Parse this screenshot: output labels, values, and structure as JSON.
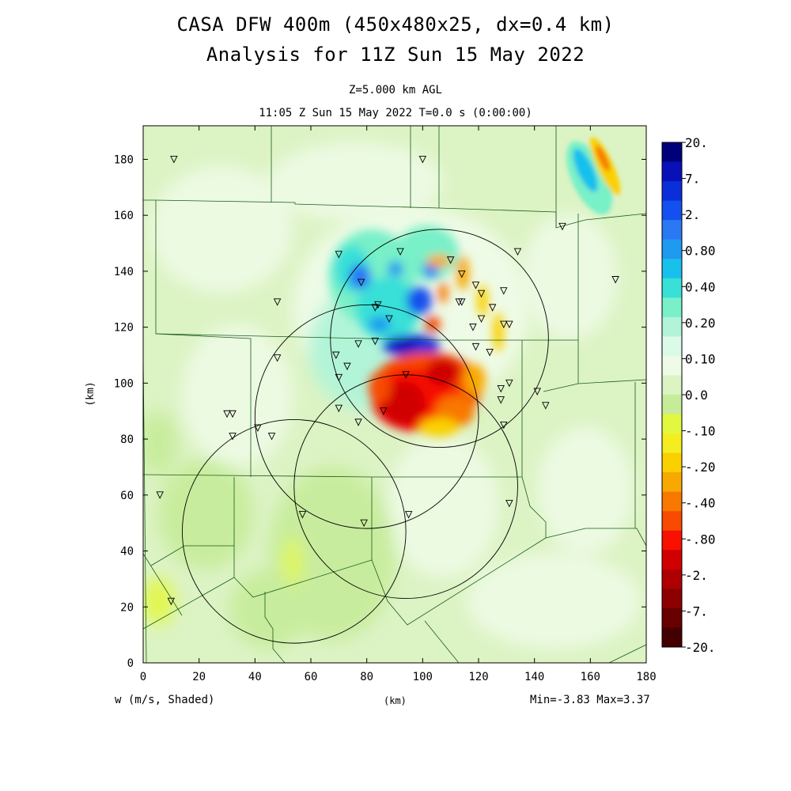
{
  "header": {
    "title_line1": "CASA DFW 400m (450x480x25, dx=0.4 km)",
    "title_line2": "Analysis for 11Z Sun 15 May 2022",
    "level": "Z=5.000 km AGL",
    "time_line": "11:05 Z Sun 15 May 2022    T=0.0 s (0:00:00)"
  },
  "footer": {
    "field_label": "w (m/s, Shaded)",
    "xunit": "(km)",
    "minmax": "Min=-3.83 Max=3.37"
  },
  "chart_data": {
    "type": "heatmap",
    "title": "CASA DFW 400m (450x480x25, dx=0.4 km)",
    "subtitle": "Analysis for 11Z Sun 15 May 2022",
    "xlabel": "(km)",
    "ylabel": "(km)",
    "xlim": [
      0,
      180
    ],
    "ylim": [
      0,
      192
    ],
    "xticks": [
      0,
      20,
      40,
      60,
      80,
      100,
      120,
      140,
      160,
      180
    ],
    "yticks": [
      0,
      20,
      40,
      60,
      80,
      100,
      120,
      140,
      160,
      180
    ],
    "field": "w (m/s, Shaded)",
    "min": -3.83,
    "max": 3.37,
    "colorbar": {
      "labels": [
        "20.",
        "7.",
        "2.",
        "0.80",
        "0.40",
        "0.20",
        "0.10",
        "0.0",
        "-.10",
        "-.20",
        "-.40",
        "-.80",
        "-2.",
        "-7.",
        "-20."
      ],
      "colors": [
        "#00007a",
        "#0a10b8",
        "#0a2ed8",
        "#1450ee",
        "#2a78f4",
        "#1e9af0",
        "#18c0ec",
        "#38e0d8",
        "#78f0c8",
        "#b2f4d8",
        "#dcfae8",
        "#eefbe6",
        "#dcf3c4",
        "#c6ec9a",
        "#e2f840",
        "#f4ee20",
        "#fad000",
        "#f8a800",
        "#f87800",
        "#f84a00",
        "#f81000",
        "#d00000",
        "#ae0000",
        "#8c0000",
        "#680000",
        "#440000"
      ]
    },
    "radar_ranges": [
      {
        "center": [
          106,
          116
        ],
        "radius": 39
      },
      {
        "center": [
          80,
          88
        ],
        "radius": 40
      },
      {
        "center": [
          94,
          63
        ],
        "radius": 40
      },
      {
        "center": [
          54,
          47
        ],
        "radius": 40
      }
    ],
    "stations": [
      [
        11,
        180
      ],
      [
        100,
        180
      ],
      [
        150,
        156
      ],
      [
        169,
        137
      ],
      [
        134,
        147
      ],
      [
        70,
        146
      ],
      [
        92,
        147
      ],
      [
        110,
        144
      ],
      [
        114,
        139
      ],
      [
        78,
        136
      ],
      [
        119,
        135
      ],
      [
        129,
        133
      ],
      [
        48,
        129
      ],
      [
        83,
        127
      ],
      [
        84,
        128
      ],
      [
        113,
        129
      ],
      [
        114,
        129
      ],
      [
        125,
        127
      ],
      [
        121,
        132
      ],
      [
        88,
        123
      ],
      [
        121,
        123
      ],
      [
        118,
        120
      ],
      [
        129,
        121
      ],
      [
        131,
        121
      ],
      [
        83,
        115
      ],
      [
        77,
        114
      ],
      [
        119,
        113
      ],
      [
        124,
        111
      ],
      [
        69,
        110
      ],
      [
        73,
        106
      ],
      [
        48,
        109
      ],
      [
        94,
        103
      ],
      [
        70,
        102
      ],
      [
        128,
        98
      ],
      [
        131,
        100
      ],
      [
        141,
        97
      ],
      [
        144,
        92
      ],
      [
        70,
        91
      ],
      [
        86,
        90
      ],
      [
        128,
        94
      ],
      [
        129,
        85
      ],
      [
        30,
        89
      ],
      [
        32,
        89
      ],
      [
        77,
        86
      ],
      [
        41,
        84
      ],
      [
        32,
        81
      ],
      [
        46,
        81
      ],
      [
        6,
        60
      ],
      [
        131,
        57
      ],
      [
        57,
        53
      ],
      [
        79,
        50
      ],
      [
        95,
        53
      ],
      [
        10,
        22
      ]
    ]
  }
}
